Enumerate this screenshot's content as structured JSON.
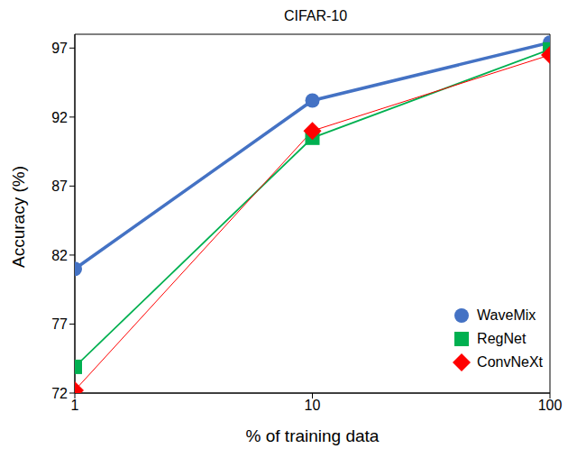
{
  "chart_data": {
    "type": "line",
    "title": "CIFAR-10",
    "x_label": "% of training data",
    "y_label": "Accuracy (%)",
    "x": [
      1,
      10,
      100
    ],
    "xlim": [
      1,
      100
    ],
    "xticks": [
      1,
      10,
      100
    ],
    "log": "x",
    "ylim": [
      72,
      98
    ],
    "yticks": [
      72,
      77,
      82,
      87,
      92,
      97
    ],
    "grid": false,
    "legend": "bottom right",
    "series": [
      {
        "name": "WaveMix",
        "color": "#4472c4",
        "marker": "circle",
        "values": [
          81.0,
          93.2,
          97.4
        ]
      },
      {
        "name": "RegNet",
        "color": "#00b050",
        "marker": "square",
        "values": [
          73.9,
          90.5,
          96.9
        ]
      },
      {
        "name": "ConvNeXt",
        "color": "#ff0000",
        "marker": "diamond",
        "values": [
          72.2,
          91.0,
          96.5
        ]
      }
    ]
  }
}
